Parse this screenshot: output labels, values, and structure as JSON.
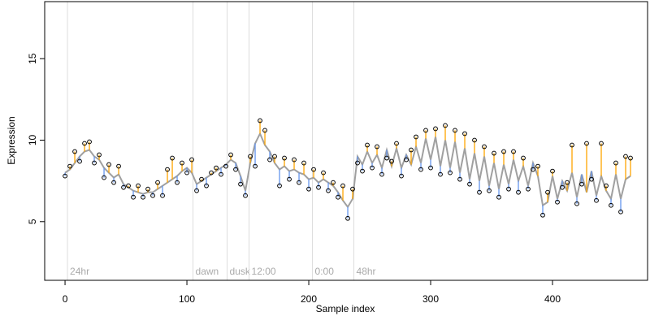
{
  "chart_data": {
    "type": "scatter",
    "xlabel": "Sample index",
    "ylabel": "Expression",
    "xlim": [
      -16.7,
      478
    ],
    "ylim": [
      1.4,
      18.5
    ],
    "xticks": [
      0,
      100,
      200,
      300,
      400
    ],
    "yticks": [
      5,
      10,
      15
    ],
    "point_color": "#000000",
    "above_color": "#ffa500",
    "below_color": "#6495ed",
    "fit_color": "#a0a0a0",
    "annotation_color": "#dddddd",
    "annotations": [
      {
        "x": 2,
        "label": "24hr"
      },
      {
        "x": 105,
        "label": "dawn"
      },
      {
        "x": 133,
        "label": "dusk"
      },
      {
        "x": 151,
        "label": "12:00"
      },
      {
        "x": 203,
        "label": "0:00"
      },
      {
        "x": 237,
        "label": "48hr"
      }
    ],
    "x": [
      0,
      4,
      8,
      12,
      16,
      20,
      24,
      28,
      32,
      36,
      40,
      44,
      48,
      52,
      56,
      60,
      64,
      68,
      72,
      76,
      80,
      84,
      88,
      92,
      96,
      100,
      104,
      108,
      112,
      116,
      120,
      124,
      128,
      132,
      136,
      140,
      144,
      148,
      152,
      156,
      160,
      164,
      168,
      172,
      176,
      180,
      184,
      188,
      192,
      196,
      200,
      204,
      208,
      212,
      216,
      220,
      224,
      228,
      232,
      236,
      240,
      244,
      248,
      252,
      256,
      260,
      264,
      268,
      272,
      276,
      280,
      284,
      288,
      292,
      296,
      300,
      304,
      308,
      312,
      316,
      320,
      324,
      328,
      332,
      336,
      340,
      344,
      348,
      352,
      356,
      360,
      364,
      368,
      372,
      376,
      380,
      384,
      388,
      392,
      396,
      400,
      404,
      408,
      412,
      416,
      420,
      424,
      428,
      432,
      436,
      440,
      444,
      448,
      452,
      456,
      460,
      464
    ],
    "values": [
      7.8,
      8.4,
      9.3,
      8.7,
      9.8,
      9.9,
      8.6,
      9.1,
      7.7,
      8.5,
      7.4,
      8.4,
      7.1,
      7.2,
      6.5,
      7.2,
      6.5,
      7.0,
      6.6,
      7.4,
      6.6,
      8.2,
      8.9,
      7.4,
      8.6,
      8.0,
      8.8,
      6.9,
      7.6,
      7.2,
      8.0,
      8.3,
      7.9,
      8.4,
      9.1,
      8.2,
      7.3,
      6.6,
      9.0,
      8.4,
      11.2,
      10.6,
      8.8,
      9.0,
      7.2,
      8.9,
      7.6,
      8.8,
      7.4,
      8.6,
      7.0,
      8.2,
      7.1,
      8.0,
      6.9,
      7.4,
      6.5,
      7.2,
      5.2,
      7.0,
      8.6,
      8.1,
      9.7,
      8.3,
      9.6,
      7.9,
      8.9,
      8.7,
      9.8,
      7.8,
      8.8,
      9.4,
      10.2,
      8.2,
      10.6,
      8.3,
      10.7,
      7.9,
      10.9,
      8.0,
      10.6,
      7.6,
      10.4,
      7.3,
      10.0,
      6.8,
      9.6,
      6.9,
      9.2,
      6.5,
      9.3,
      7.0,
      9.3,
      6.8,
      8.9,
      7.0,
      8.2,
      8.4,
      5.4,
      6.8,
      8.1,
      6.2,
      7.1,
      7.4,
      9.7,
      6.1,
      7.3,
      9.8,
      7.6,
      6.3,
      9.8,
      7.2,
      6.0,
      8.6,
      5.6,
      9.0,
      8.9
    ],
    "fitted": [
      8.0,
      8.2,
      8.6,
      9.0,
      9.3,
      9.4,
      9.0,
      8.8,
      8.3,
      8.0,
      7.7,
      7.9,
      7.3,
      7.1,
      6.9,
      6.8,
      6.7,
      6.8,
      6.8,
      7.0,
      7.2,
      7.4,
      7.6,
      7.8,
      8.1,
      8.3,
      8.0,
      7.3,
      7.5,
      7.7,
      7.9,
      8.1,
      8.3,
      8.5,
      8.8,
      8.6,
      7.8,
      6.9,
      8.6,
      9.8,
      10.4,
      9.7,
      9.3,
      8.6,
      8.2,
      8.4,
      8.1,
      8.2,
      8.0,
      7.9,
      7.6,
      7.7,
      7.4,
      7.6,
      7.4,
      7.2,
      6.8,
      6.3,
      5.9,
      6.4,
      9.0,
      8.5,
      9.3,
      8.6,
      9.1,
      8.3,
      9.4,
      8.4,
      9.5,
      8.3,
      9.1,
      8.5,
      9.6,
      8.6,
      10.1,
      8.8,
      10.2,
      8.4,
      10.0,
      8.3,
      9.9,
      8.0,
      9.5,
      7.6,
      9.2,
      7.5,
      9.0,
      7.2,
      8.6,
      7.0,
      8.5,
      7.3,
      8.8,
      7.5,
      8.4,
      7.2,
      8.6,
      7.8,
      6.0,
      6.2,
      7.8,
      6.4,
      7.5,
      6.9,
      8.0,
      6.5,
      7.9,
      6.8,
      8.1,
      6.6,
      7.8,
      6.9,
      6.4,
      7.9,
      6.4,
      7.6,
      7.8
    ]
  }
}
